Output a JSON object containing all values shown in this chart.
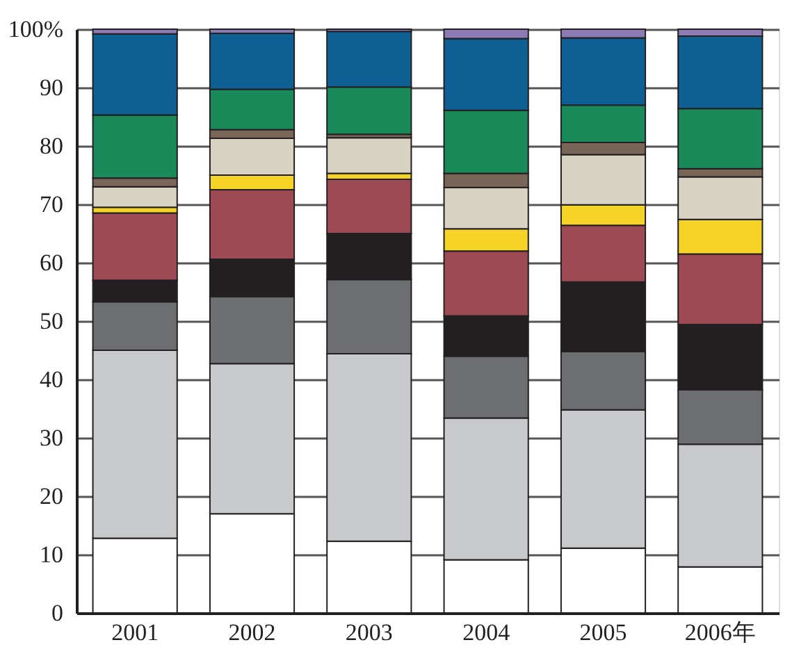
{
  "chart_data": {
    "type": "bar",
    "stacked": true,
    "categories": [
      "2001",
      "2002",
      "2003",
      "2004",
      "2005",
      "2006年"
    ],
    "series": [
      {
        "color": "#ffffff",
        "values": [
          12.8,
          17,
          12.3,
          9.1,
          11.1,
          7.9
        ]
      },
      {
        "color": "#c8c9cb",
        "values": [
          32.2,
          25.7,
          32.1,
          24.3,
          23.7,
          21.0
        ]
      },
      {
        "color": "#6d6e70",
        "values": [
          8.3,
          11.5,
          12.7,
          10.6,
          10.0,
          9.3
        ]
      },
      {
        "color": "#231f20",
        "values": [
          3.7,
          6.4,
          7.9,
          6.9,
          11.9,
          11.2
        ]
      },
      {
        "color": "#9e4a55",
        "values": [
          11.5,
          11.9,
          9.3,
          11.1,
          9.7,
          12.1
        ]
      },
      {
        "color": "#f5d327",
        "values": [
          1.0,
          2.5,
          1.0,
          3.8,
          3.5,
          5.9
        ]
      },
      {
        "color": "#d9d3c3",
        "values": [
          3.5,
          6.3,
          6.1,
          7.1,
          8.6,
          7.3
        ]
      },
      {
        "color": "#7a6658",
        "values": [
          1.5,
          1.5,
          0.6,
          2.4,
          2.1,
          1.4
        ]
      },
      {
        "color": "#1a8a5a",
        "values": [
          10.8,
          6.9,
          8.1,
          10.8,
          6.4,
          10.3
        ]
      },
      {
        "color": "#0e5f94",
        "values": [
          13.9,
          9.6,
          9.5,
          12.3,
          11.5,
          12.4
        ]
      },
      {
        "color": "#8c7bb5",
        "values": [
          0.8,
          0.7,
          0.4,
          1.6,
          1.5,
          1.2
        ]
      }
    ],
    "ylim": [
      0,
      100
    ],
    "yticks": [
      0,
      10,
      20,
      30,
      40,
      50,
      60,
      70,
      80,
      90,
      {
        "value": 100,
        "label": "100%"
      }
    ],
    "grid": "y",
    "legend": false
  }
}
